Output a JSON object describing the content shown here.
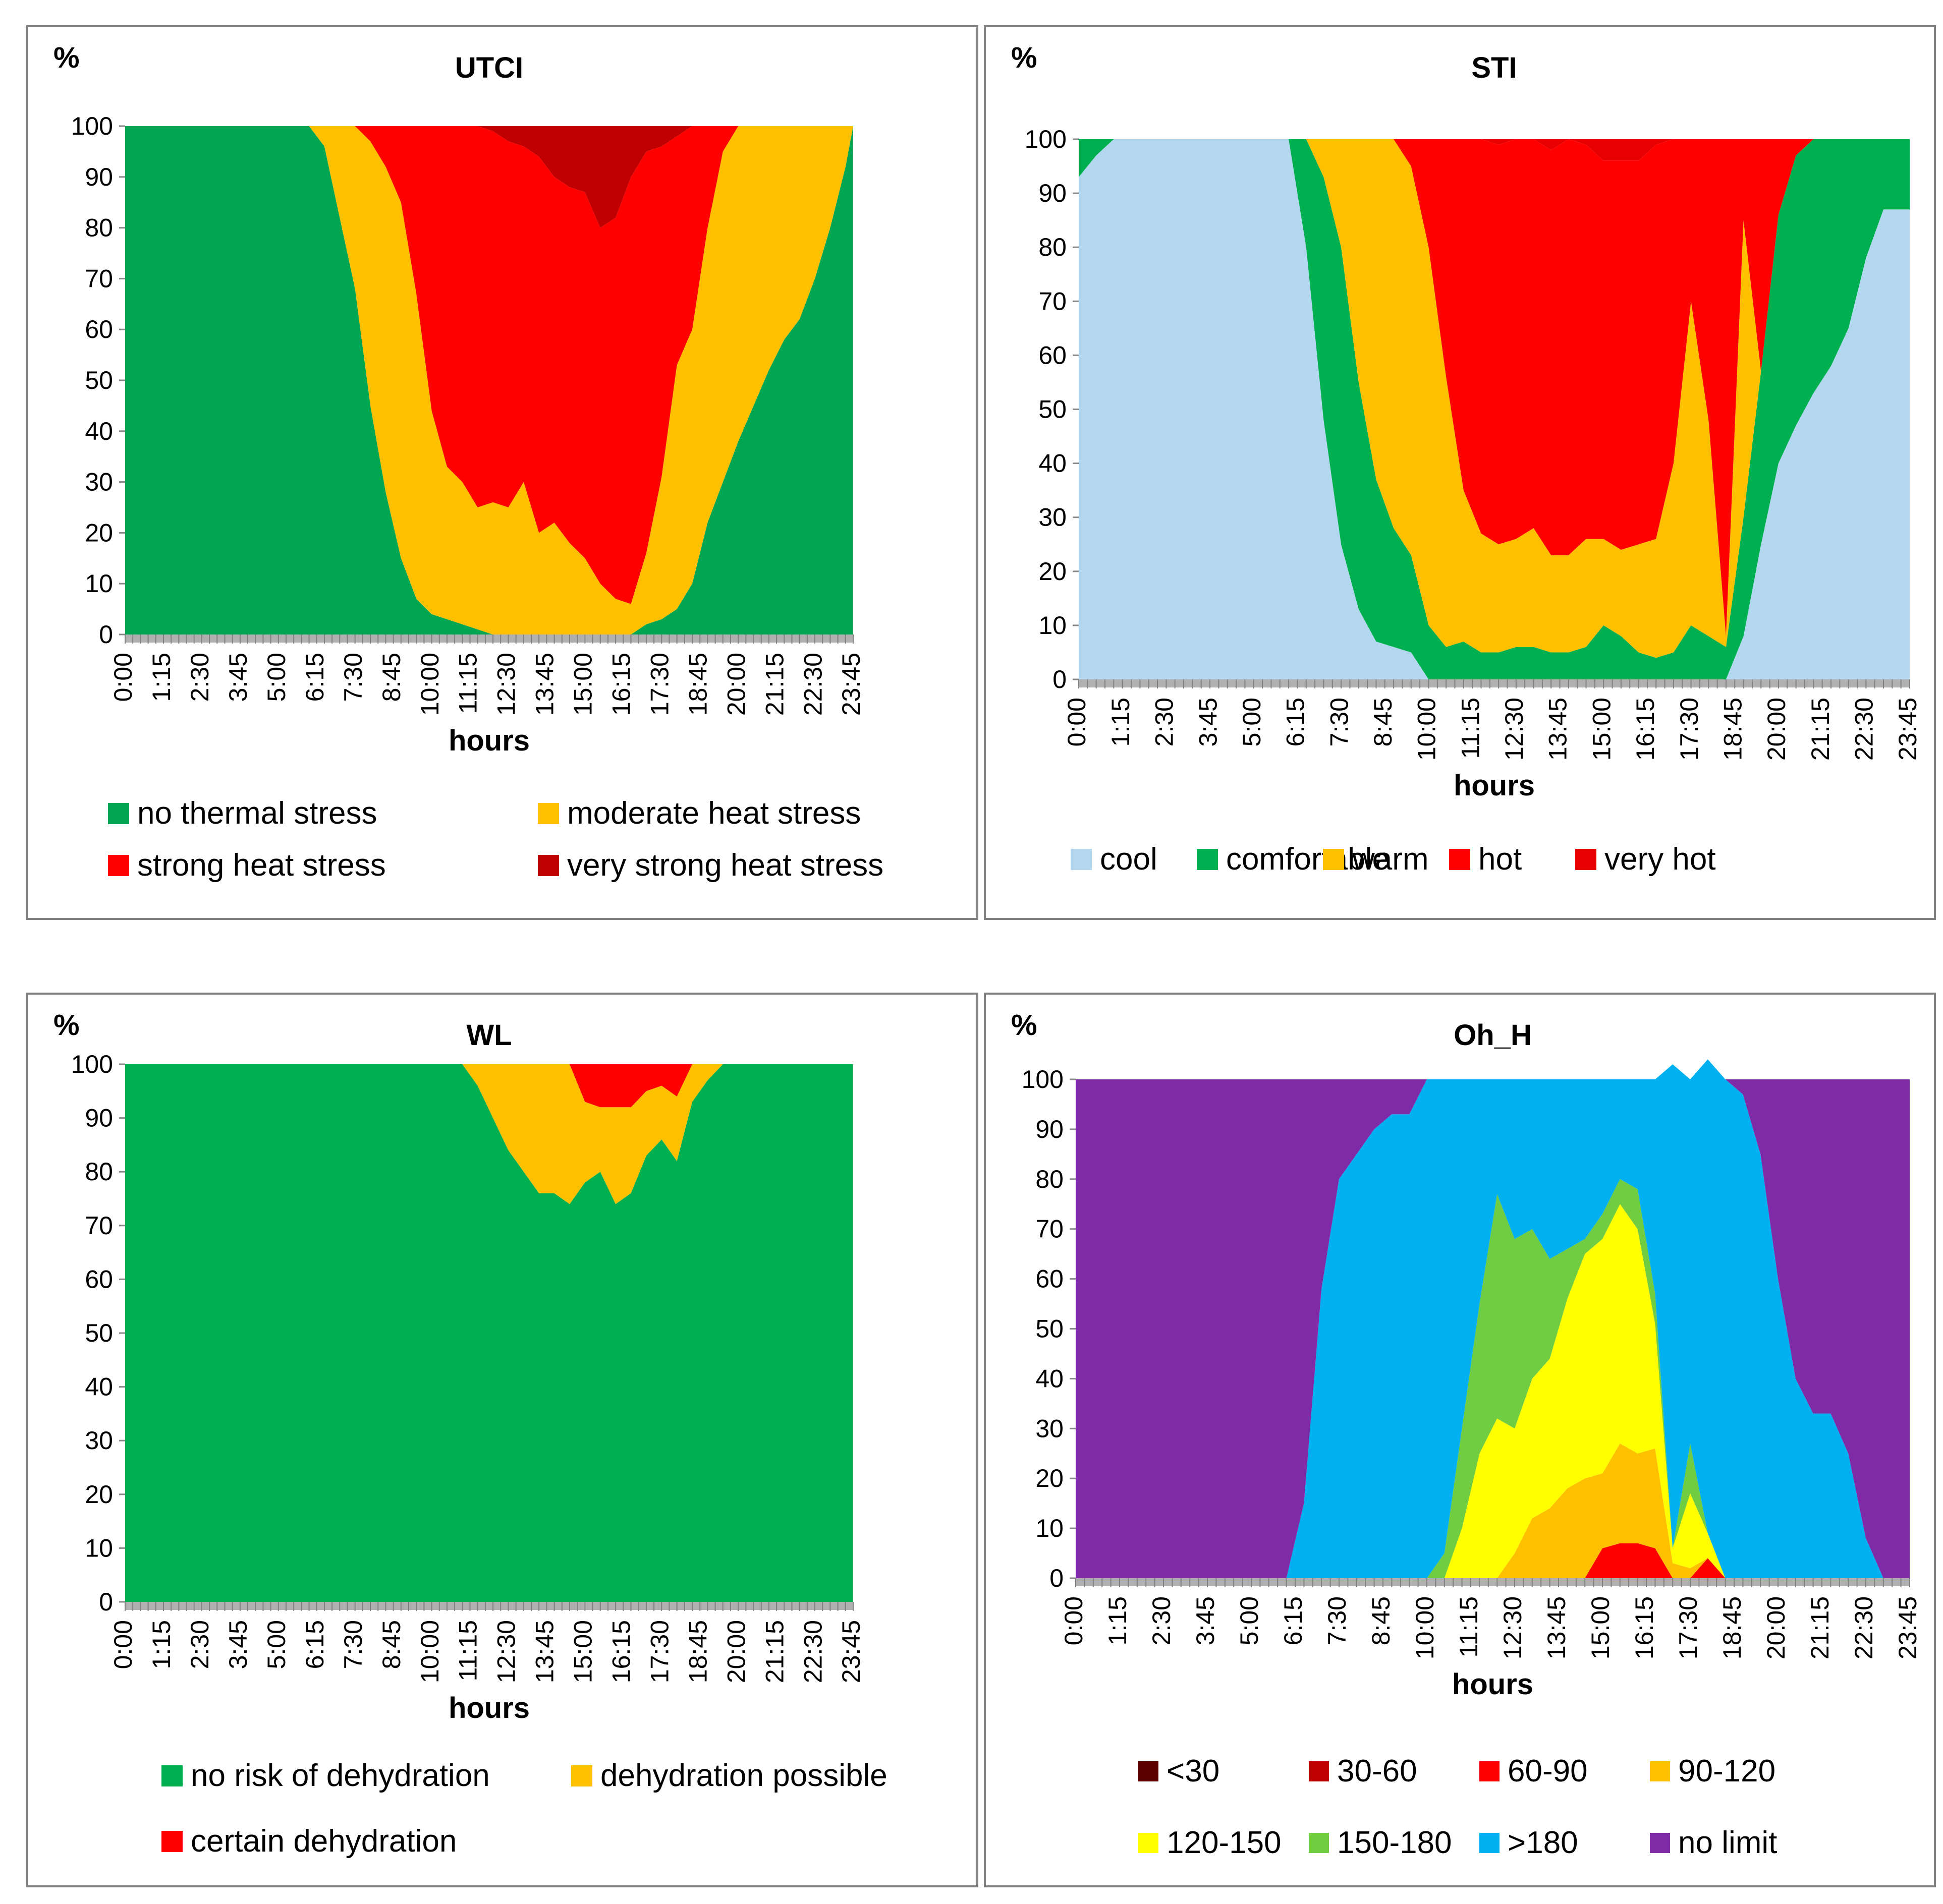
{
  "chart_data": [
    {
      "type": "area",
      "title": "UTCI",
      "ylabel": "%",
      "xlabel": "hours",
      "ylim": [
        0,
        100
      ],
      "yticks": [
        "0",
        "10",
        "20",
        "30",
        "40",
        "50",
        "60",
        "70",
        "80",
        "90",
        "100"
      ],
      "xticks": [
        "0:00",
        "1:15",
        "2:30",
        "3:45",
        "5:00",
        "6:15",
        "7:30",
        "8:45",
        "10:00",
        "11:15",
        "12:30",
        "13:45",
        "15:00",
        "16:15",
        "17:30",
        "18:45",
        "20:00",
        "21:15",
        "22:30",
        "23:45"
      ],
      "legend_position": "bottom",
      "x": [
        "0:00",
        "1:00",
        "2:00",
        "3:00",
        "4:00",
        "5:00",
        "6:00",
        "6:30",
        "7:00",
        "7:30",
        "8:00",
        "8:30",
        "9:00",
        "9:30",
        "10:00",
        "10:30",
        "11:00",
        "11:30",
        "12:00",
        "12:30",
        "13:00",
        "13:30",
        "14:00",
        "14:30",
        "15:00",
        "15:30",
        "16:00",
        "16:30",
        "17:00",
        "17:30",
        "18:00",
        "18:30",
        "19:00",
        "19:30",
        "20:00",
        "20:30",
        "21:00",
        "21:30",
        "22:00",
        "22:30",
        "23:00",
        "23:30",
        "23:45"
      ],
      "series": [
        {
          "name": "no thermal stress",
          "color": "#00A651",
          "values": [
            100,
            100,
            100,
            100,
            100,
            100,
            100,
            96,
            82,
            68,
            45,
            28,
            15,
            7,
            4,
            3,
            2,
            1,
            0,
            0,
            0,
            0,
            0,
            0,
            0,
            0,
            0,
            0,
            2,
            3,
            5,
            10,
            22,
            30,
            38,
            45,
            52,
            58,
            62,
            70,
            80,
            92,
            100
          ]
        },
        {
          "name": "moderate heat stress",
          "color": "#FFC000",
          "values": [
            0,
            0,
            0,
            0,
            0,
            0,
            0,
            4,
            18,
            32,
            52,
            64,
            70,
            60,
            40,
            30,
            28,
            24,
            26,
            25,
            30,
            20,
            22,
            18,
            15,
            10,
            7,
            6,
            14,
            28,
            48,
            50,
            58,
            65,
            62,
            55,
            48,
            42,
            38,
            30,
            20,
            8,
            0
          ]
        },
        {
          "name": "strong heat stress",
          "color": "#FF0000",
          "values": [
            0,
            0,
            0,
            0,
            0,
            0,
            0,
            0,
            0,
            0,
            3,
            8,
            15,
            33,
            56,
            67,
            70,
            75,
            73,
            72,
            66,
            74,
            68,
            70,
            72,
            70,
            75,
            84,
            79,
            65,
            45,
            40,
            20,
            5,
            0,
            0,
            0,
            0,
            0,
            0,
            0,
            0,
            0
          ]
        },
        {
          "name": "very strong heat stress",
          "color": "#C00000",
          "values": [
            0,
            0,
            0,
            0,
            0,
            0,
            0,
            0,
            0,
            0,
            0,
            0,
            0,
            0,
            0,
            0,
            0,
            0,
            1,
            3,
            4,
            6,
            10,
            12,
            13,
            20,
            18,
            10,
            5,
            4,
            2,
            0,
            0,
            0,
            0,
            0,
            0,
            0,
            0,
            0,
            0,
            0,
            0
          ]
        }
      ]
    },
    {
      "type": "area",
      "title": "STI",
      "ylabel": "%",
      "xlabel": "hours",
      "ylim": [
        0,
        100
      ],
      "yticks": [
        "0",
        "10",
        "20",
        "30",
        "40",
        "50",
        "60",
        "70",
        "80",
        "90",
        "100"
      ],
      "xticks": [
        "0:00",
        "1:15",
        "2:30",
        "3:45",
        "5:00",
        "6:15",
        "7:30",
        "8:45",
        "10:00",
        "11:15",
        "12:30",
        "13:45",
        "15:00",
        "16:15",
        "17:30",
        "18:45",
        "20:00",
        "21:15",
        "22:30",
        "23:45"
      ],
      "legend_position": "bottom",
      "x": [
        "0:00",
        "0:30",
        "1:00",
        "2:00",
        "3:00",
        "4:00",
        "5:00",
        "6:00",
        "6:30",
        "7:00",
        "7:30",
        "8:00",
        "8:30",
        "9:00",
        "9:30",
        "10:00",
        "10:30",
        "11:00",
        "11:30",
        "12:00",
        "12:30",
        "13:00",
        "13:30",
        "14:00",
        "14:30",
        "15:00",
        "15:30",
        "16:00",
        "16:30",
        "17:00",
        "17:30",
        "18:00",
        "18:30",
        "19:00",
        "19:30",
        "20:00",
        "20:30",
        "21:00",
        "21:30",
        "22:00",
        "22:30",
        "23:00",
        "23:30",
        "23:45"
      ],
      "series": [
        {
          "name": "cool",
          "color": "#B4D7F0",
          "values": [
            93,
            97,
            100,
            100,
            100,
            100,
            100,
            100,
            80,
            48,
            25,
            13,
            7,
            6,
            5,
            0,
            0,
            0,
            0,
            0,
            0,
            0,
            0,
            0,
            0,
            0,
            0,
            0,
            0,
            0,
            0,
            0,
            0,
            8,
            25,
            40,
            47,
            53,
            58,
            65,
            78,
            87,
            87,
            87
          ]
        },
        {
          "name": "comfortable",
          "color": "#00B050",
          "values": [
            7,
            3,
            0,
            0,
            0,
            0,
            0,
            0,
            20,
            45,
            55,
            42,
            30,
            22,
            18,
            10,
            6,
            7,
            5,
            5,
            6,
            6,
            5,
            5,
            6,
            10,
            8,
            5,
            4,
            5,
            10,
            8,
            6,
            22,
            32,
            46,
            50,
            47,
            42,
            35,
            22,
            13,
            13,
            13
          ]
        },
        {
          "name": "warm",
          "color": "#FFC000",
          "values": [
            0,
            0,
            0,
            0,
            0,
            0,
            0,
            0,
            0,
            7,
            20,
            45,
            63,
            72,
            72,
            70,
            50,
            28,
            22,
            20,
            20,
            22,
            18,
            18,
            20,
            16,
            16,
            20,
            22,
            35,
            60,
            40,
            2,
            55,
            0,
            0,
            0,
            0,
            0,
            0,
            0,
            0,
            0,
            0
          ]
        },
        {
          "name": "hot",
          "color": "#FF0000",
          "values": [
            0,
            0,
            0,
            0,
            0,
            0,
            0,
            0,
            0,
            0,
            0,
            0,
            0,
            0,
            5,
            20,
            44,
            65,
            73,
            74,
            74,
            72,
            75,
            77,
            73,
            70,
            72,
            71,
            73,
            60,
            30,
            52,
            92,
            15,
            43,
            14,
            3,
            0,
            0,
            0,
            0,
            0,
            0,
            0
          ]
        },
        {
          "name": "very hot",
          "color": "#E80000",
          "values": [
            0,
            0,
            0,
            0,
            0,
            0,
            0,
            0,
            0,
            0,
            0,
            0,
            0,
            0,
            0,
            0,
            0,
            0,
            0,
            1,
            0,
            0,
            2,
            0,
            1,
            4,
            4,
            4,
            1,
            0,
            0,
            0,
            0,
            0,
            0,
            0,
            0,
            0,
            0,
            0,
            0,
            0,
            0,
            0
          ]
        }
      ]
    },
    {
      "type": "area",
      "title": "WL",
      "ylabel": "%",
      "xlabel": "hours",
      "ylim": [
        0,
        100
      ],
      "yticks": [
        "0",
        "10",
        "20",
        "30",
        "40",
        "50",
        "60",
        "70",
        "80",
        "90",
        "100"
      ],
      "xticks": [
        "0:00",
        "1:15",
        "2:30",
        "3:45",
        "5:00",
        "6:15",
        "7:30",
        "8:45",
        "10:00",
        "11:15",
        "12:30",
        "13:45",
        "15:00",
        "16:15",
        "17:30",
        "18:45",
        "20:00",
        "21:15",
        "22:30",
        "23:45"
      ],
      "legend_position": "bottom",
      "x": [
        "0:00",
        "11:00",
        "11:30",
        "12:00",
        "12:30",
        "13:00",
        "13:30",
        "14:00",
        "14:30",
        "15:00",
        "15:30",
        "16:00",
        "16:30",
        "17:00",
        "17:30",
        "18:00",
        "18:30",
        "19:00",
        "19:30",
        "20:00",
        "23:45"
      ],
      "series": [
        {
          "name": "no risk of dehydration",
          "color": "#00B050",
          "values": [
            100,
            100,
            96,
            90,
            84,
            80,
            76,
            76,
            74,
            78,
            80,
            74,
            76,
            83,
            86,
            82,
            93,
            97,
            100,
            100,
            100
          ]
        },
        {
          "name": "dehydration possible",
          "color": "#FFC000",
          "values": [
            0,
            0,
            4,
            10,
            16,
            20,
            24,
            24,
            26,
            15,
            12,
            18,
            16,
            12,
            10,
            12,
            7,
            3,
            0,
            0,
            0
          ]
        },
        {
          "name": "certain dehydration",
          "color": "#FF0000",
          "values": [
            0,
            0,
            0,
            0,
            0,
            0,
            0,
            0,
            0,
            7,
            8,
            8,
            8,
            5,
            4,
            6,
            0,
            0,
            0,
            0,
            0
          ]
        }
      ]
    },
    {
      "type": "area",
      "title": "Oh_H",
      "ylabel": "%",
      "xlabel": "hours",
      "ylim": [
        0,
        100
      ],
      "yticks": [
        "0",
        "10",
        "20",
        "30",
        "40",
        "50",
        "60",
        "70",
        "80",
        "90",
        "100"
      ],
      "xticks": [
        "0:00",
        "1:15",
        "2:30",
        "3:45",
        "5:00",
        "6:15",
        "7:30",
        "8:45",
        "10:00",
        "11:15",
        "12:30",
        "13:45",
        "15:00",
        "16:15",
        "17:30",
        "18:45",
        "20:00",
        "21:15",
        "22:30",
        "23:45"
      ],
      "legend_position": "bottom",
      "x": [
        "0:00",
        "6:00",
        "6:30",
        "7:00",
        "7:30",
        "8:00",
        "8:30",
        "9:00",
        "9:30",
        "10:00",
        "10:30",
        "11:00",
        "11:30",
        "12:00",
        "12:30",
        "13:00",
        "13:30",
        "14:00",
        "14:30",
        "15:00",
        "15:30",
        "16:00",
        "16:30",
        "17:00",
        "17:30",
        "18:00",
        "18:30",
        "19:00",
        "19:30",
        "20:00",
        "20:30",
        "21:00",
        "21:30",
        "22:00",
        "22:30",
        "23:00",
        "23:45"
      ],
      "series": [
        {
          "name": "<30",
          "color": "#5C0000",
          "values": [
            0,
            0,
            0,
            0,
            0,
            0,
            0,
            0,
            0,
            0,
            0,
            0,
            0,
            0,
            0,
            0,
            0,
            0,
            0,
            0,
            0,
            0,
            0,
            0,
            0,
            0,
            0,
            0,
            0,
            0,
            0,
            0,
            0,
            0,
            0,
            0,
            0
          ]
        },
        {
          "name": "30-60",
          "color": "#C00000",
          "values": [
            0,
            0,
            0,
            0,
            0,
            0,
            0,
            0,
            0,
            0,
            0,
            0,
            0,
            0,
            0,
            0,
            0,
            0,
            0,
            0,
            0,
            0,
            0,
            0,
            0,
            0,
            0,
            0,
            0,
            0,
            0,
            0,
            0,
            0,
            0,
            0,
            0
          ]
        },
        {
          "name": "60-90",
          "color": "#FF0000",
          "values": [
            0,
            0,
            0,
            0,
            0,
            0,
            0,
            0,
            0,
            0,
            0,
            0,
            0,
            0,
            0,
            0,
            0,
            0,
            0,
            6,
            7,
            7,
            6,
            0,
            0,
            4,
            0,
            0,
            0,
            0,
            0,
            0,
            0,
            0,
            0,
            0,
            0
          ]
        },
        {
          "name": "90-120",
          "color": "#FFC000",
          "values": [
            0,
            0,
            0,
            0,
            0,
            0,
            0,
            0,
            0,
            0,
            0,
            0,
            0,
            0,
            5,
            12,
            14,
            18,
            20,
            15,
            20,
            18,
            20,
            3,
            2,
            0,
            0,
            0,
            0,
            0,
            0,
            0,
            0,
            0,
            0,
            0,
            0
          ]
        },
        {
          "name": "120-150",
          "color": "#FFFF00",
          "values": [
            0,
            0,
            0,
            0,
            0,
            0,
            0,
            0,
            0,
            0,
            0,
            10,
            25,
            32,
            25,
            28,
            30,
            38,
            45,
            47,
            48,
            45,
            25,
            3,
            15,
            5,
            0,
            0,
            0,
            0,
            0,
            0,
            0,
            0,
            0,
            0,
            0
          ]
        },
        {
          "name": "150-180",
          "color": "#70CC40",
          "values": [
            0,
            0,
            0,
            0,
            0,
            0,
            0,
            0,
            0,
            0,
            5,
            20,
            30,
            45,
            38,
            30,
            20,
            10,
            3,
            5,
            5,
            8,
            6,
            0,
            10,
            0,
            0,
            0,
            0,
            0,
            0,
            0,
            0,
            0,
            0,
            0,
            0
          ]
        },
        {
          "name": ">180",
          "color": "#00B0F0",
          "values": [
            0,
            0,
            15,
            58,
            80,
            85,
            90,
            93,
            93,
            100,
            95,
            70,
            45,
            23,
            32,
            30,
            36,
            34,
            32,
            27,
            20,
            22,
            43,
            97,
            73,
            95,
            100,
            97,
            85,
            60,
            40,
            33,
            33,
            25,
            8,
            0,
            0
          ]
        },
        {
          "name": "no limit",
          "color": "#7F2AA6",
          "values": [
            100,
            100,
            85,
            42,
            20,
            15,
            10,
            7,
            7,
            0,
            0,
            0,
            0,
            0,
            0,
            0,
            0,
            0,
            0,
            0,
            0,
            0,
            0,
            0,
            0,
            0,
            0,
            3,
            15,
            40,
            60,
            67,
            67,
            75,
            92,
            100,
            100
          ]
        }
      ]
    }
  ]
}
